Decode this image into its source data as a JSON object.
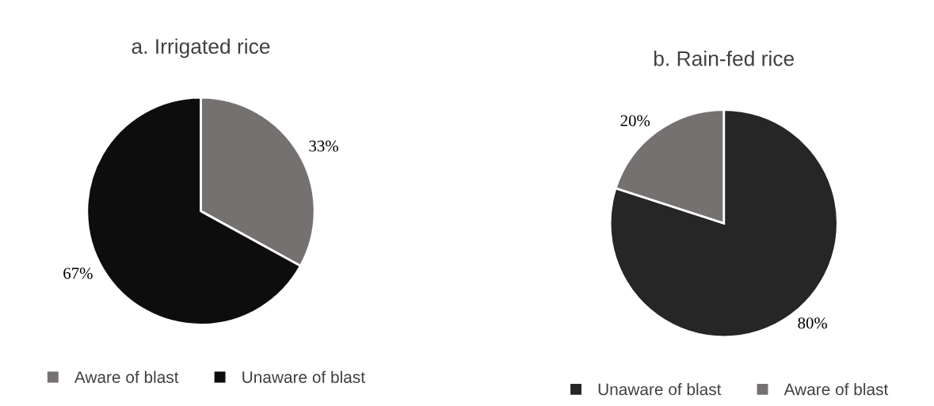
{
  "chart_data": [
    {
      "type": "pie",
      "title": "a. Irrigated rice",
      "categories": [
        "Aware of blast",
        "Unaware of blast"
      ],
      "values": [
        33,
        67
      ],
      "colors": [
        "#767171",
        "#0d0d0d"
      ],
      "value_labels": [
        "33%",
        "67%"
      ],
      "legend": "bottom"
    },
    {
      "type": "pie",
      "title": "b. Rain-fed rice",
      "categories": [
        "Unaware of blast",
        "Aware of blast"
      ],
      "values": [
        80,
        20
      ],
      "colors": [
        "#262626",
        "#767171"
      ],
      "value_labels": [
        "80%",
        "20%"
      ],
      "legend": "bottom"
    }
  ]
}
